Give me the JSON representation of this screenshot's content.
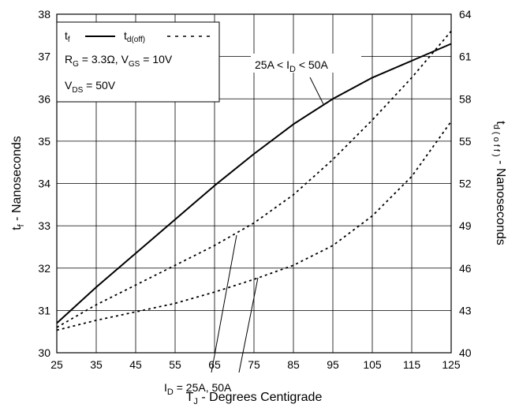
{
  "chart_data": {
    "type": "line",
    "xlabel_main": "T",
    "xlabel_sub": "J",
    "xlabel_rest": " - Degrees Centigrade",
    "ylabel_main": "t",
    "ylabel_sub": "f",
    "ylabel_rest": " - Nanoseconds",
    "y2label_main": "t",
    "y2label_sub": "d ( o f f )",
    "y2label_rest": " - Nanoseconds",
    "xlim": [
      25,
      125
    ],
    "ylim": [
      30,
      38
    ],
    "y2lim": [
      40,
      64
    ],
    "x_ticks": [
      "25",
      "35",
      "45",
      "55",
      "65",
      "75",
      "85",
      "95",
      "105",
      "115",
      "125"
    ],
    "y_ticks": [
      "30",
      "31",
      "32",
      "33",
      "34",
      "35",
      "36",
      "37",
      "38"
    ],
    "y2_ticks": [
      "40",
      "43",
      "46",
      "49",
      "52",
      "55",
      "58",
      "61",
      "64"
    ],
    "grid": true,
    "legend": {
      "position": "top-left",
      "tf_main": "t",
      "tf_sub": "f",
      "td_main": "t",
      "td_sub": "d(off)",
      "rg_main": "R",
      "rg_sub": "G",
      "rg_rest": " = 3.3Ω,  V",
      "vgs_sub": "GS",
      "vgs_rest": " = 10V",
      "vds_main": "V",
      "vds_sub": "DS",
      "vds_rest": " = 50V"
    },
    "annotations": {
      "upper_a": "25A < I",
      "upper_sub": "D",
      "upper_b": " < 50A",
      "lower_a": "I",
      "lower_sub": "D",
      "lower_b": " = 25A, 50A"
    },
    "series": [
      {
        "axis": "left",
        "style": "solid",
        "x": [
          25,
          35,
          45,
          55,
          65,
          75,
          85,
          95,
          105,
          115,
          125
        ],
        "y": [
          30.7,
          31.55,
          32.35,
          33.15,
          33.95,
          34.7,
          35.4,
          36.0,
          36.5,
          36.9,
          37.3
        ]
      },
      {
        "axis": "right",
        "style": "dashed",
        "x": [
          25,
          35,
          45,
          55,
          65,
          75,
          85,
          95,
          105,
          115,
          125
        ],
        "y": [
          41.8,
          43.4,
          44.8,
          46.2,
          47.6,
          49.2,
          51.2,
          53.7,
          56.5,
          59.5,
          62.8
        ]
      },
      {
        "axis": "right",
        "style": "dashed",
        "x": [
          25,
          35,
          45,
          55,
          65,
          75,
          85,
          95,
          105,
          115,
          125
        ],
        "y": [
          41.6,
          42.3,
          42.9,
          43.5,
          44.3,
          45.2,
          46.2,
          47.6,
          49.7,
          52.5,
          56.4
        ]
      }
    ]
  }
}
